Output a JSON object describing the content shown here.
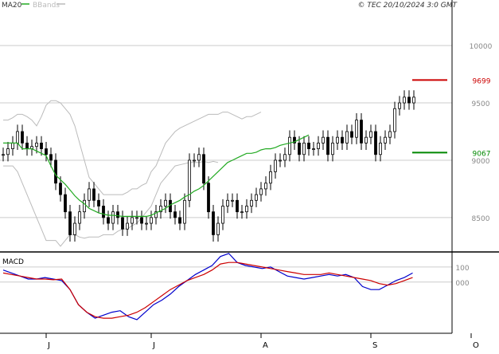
{
  "header": {
    "legend_ma": "MA20",
    "legend_bbands": "BBands",
    "copyright": "© TEC 20/10/2024 3:0 GMT"
  },
  "colors": {
    "candle": "#000000",
    "ma": "#22aa22",
    "bbands": "#bbbbbb",
    "macd": "#0000cc",
    "signal": "#cc0000",
    "grid": "#cccccc",
    "resistance": "#cc0000",
    "support": "#008800"
  },
  "chart_data": [
    {
      "type": "candlestick",
      "ylim": [
        8200,
        10300
      ],
      "y_ticks": [
        {
          "value": 8500,
          "label": "8500"
        },
        {
          "value": 9000,
          "label": "9000"
        },
        {
          "value": 9500,
          "label": "9500"
        },
        {
          "value": 10000,
          "label": "10000"
        }
      ],
      "x_ticks": [
        {
          "index": 9,
          "label": "J"
        },
        {
          "index": 31,
          "label": "J"
        },
        {
          "index": 54,
          "label": "A"
        },
        {
          "index": 77,
          "label": "S"
        },
        {
          "index": 98,
          "label": "O"
        }
      ],
      "levels": [
        {
          "name": "resistance",
          "value": 9699,
          "label": "9699"
        },
        {
          "name": "support",
          "value": 9067,
          "label": "9067"
        }
      ],
      "close": [
        9050,
        9100,
        9150,
        9250,
        9150,
        9100,
        9120,
        9150,
        9100,
        9050,
        9000,
        8800,
        8700,
        8550,
        8350,
        8450,
        8550,
        8650,
        8750,
        8650,
        8600,
        8500,
        8450,
        8550,
        8500,
        8400,
        8450,
        8500,
        8500,
        8450,
        8450,
        8500,
        8550,
        8600,
        8650,
        8550,
        8500,
        8450,
        8650,
        9000,
        9000,
        9050,
        8800,
        8550,
        8350,
        8450,
        8600,
        8650,
        8650,
        8550,
        8550,
        8600,
        8650,
        8700,
        8750,
        8800,
        8900,
        9000,
        9000,
        9050,
        9200,
        9150,
        9050,
        9150,
        9100,
        9100,
        9150,
        9200,
        9050,
        9150,
        9200,
        9150,
        9250,
        9200,
        9350,
        9150,
        9200,
        9250,
        9050,
        9150,
        9200,
        9250,
        9450,
        9500,
        9550,
        9500,
        9550
      ],
      "ma20": [
        9150,
        9150,
        9150,
        9150,
        9100,
        9100,
        9100,
        9080,
        9060,
        9040,
        8950,
        8870,
        8830,
        8790,
        8740,
        8690,
        8650,
        8620,
        8580,
        8560,
        8540,
        8530,
        8520,
        8520,
        8515,
        8510,
        8510,
        8510,
        8510,
        8510,
        8510,
        8520,
        8540,
        8560,
        8580,
        8610,
        8630,
        8650,
        8680,
        8700,
        8730,
        8750,
        8780,
        8820,
        8860,
        8900,
        8940,
        8980,
        9000,
        9020,
        9040,
        9060,
        9060,
        9070,
        9090,
        9100,
        9100,
        9110,
        9130,
        9140,
        9150,
        9160,
        9180,
        9200,
        9220
      ],
      "ma20_start_index": 0,
      "bb_upper": [
        9350,
        9350,
        9370,
        9400,
        9400,
        9380,
        9350,
        9300,
        9380,
        9480,
        9520,
        9520,
        9500,
        9450,
        9400,
        9300,
        9150,
        9000,
        8850,
        8800,
        8750,
        8700,
        8700,
        8700,
        8700,
        8700,
        8720,
        8750,
        8750,
        8780,
        8800,
        8900,
        8950,
        9050,
        9150,
        9200,
        9250,
        9280,
        9300,
        9320,
        9340,
        9360,
        9380,
        9400,
        9400,
        9400,
        9420,
        9420,
        9400,
        9380,
        9360,
        9380,
        9380,
        9400,
        9420
      ],
      "bb_lower": [
        8950,
        8950,
        8950,
        8900,
        8800,
        8700,
        8600,
        8500,
        8400,
        8300,
        8300,
        8300,
        8250,
        8300,
        8350,
        8350,
        8330,
        8320,
        8330,
        8330,
        8330,
        8350,
        8350,
        8350,
        8380,
        8400,
        8400,
        8430,
        8450,
        8500,
        8550,
        8600,
        8700,
        8800,
        8850,
        8900,
        8950,
        8960,
        8970,
        8980,
        8980,
        8980,
        8990,
        8980,
        8990,
        8980
      ]
    },
    {
      "type": "line",
      "title": "MACD",
      "ylim": [
        -340,
        200
      ],
      "y_ticks": [
        {
          "value": 100,
          "label": "100"
        },
        {
          "value": 0,
          "label": "000"
        }
      ],
      "series": [
        {
          "values": [
            80,
            60,
            40,
            20,
            20,
            30,
            20,
            10,
            -50,
            -150,
            -200,
            -240,
            -220,
            -200,
            -190,
            -230,
            -250,
            -200,
            -150,
            -120,
            -80,
            -30,
            10,
            50,
            80,
            110,
            170,
            190,
            130,
            110,
            100,
            90,
            100,
            70,
            40,
            30,
            20,
            30,
            40,
            50,
            40,
            50,
            30,
            -30,
            -50,
            -50,
            -20,
            10,
            30,
            60
          ]
        },
        {
          "values": [
            60,
            50,
            40,
            30,
            20,
            20,
            15,
            20,
            -50,
            -150,
            -200,
            -230,
            -240,
            -240,
            -230,
            -220,
            -200,
            -170,
            -130,
            -90,
            -50,
            -20,
            10,
            30,
            50,
            80,
            120,
            130,
            130,
            120,
            110,
            100,
            90,
            80,
            70,
            60,
            50,
            50,
            50,
            60,
            50,
            40,
            30,
            20,
            10,
            -10,
            -20,
            -10,
            10,
            30
          ]
        }
      ]
    }
  ]
}
